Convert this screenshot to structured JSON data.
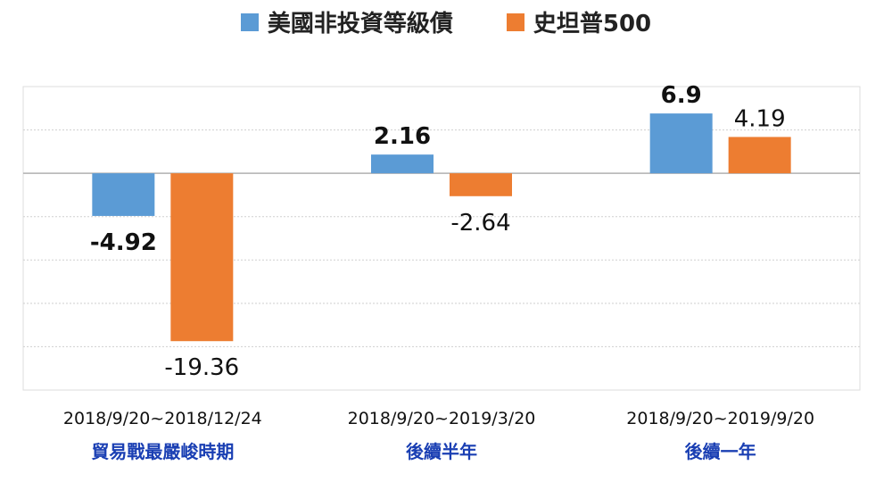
{
  "colors": {
    "series1": "#5b9bd5",
    "series2": "#ed7d31",
    "category_title": "#1a3fb3",
    "grid": "#cfcfcf"
  },
  "legend": [
    {
      "label": "美國非投資等級債"
    },
    {
      "label": "史坦普500"
    }
  ],
  "chart_data": {
    "type": "bar",
    "categories": [
      "2018/9/20~2018/12/24",
      "2018/9/20~2019/3/20",
      "2018/9/20~2019/9/20"
    ],
    "category_titles": [
      "貿易戰最嚴峻時期",
      "後續半年",
      "後續一年"
    ],
    "series": [
      {
        "name": "美國非投資等級債",
        "values": [
          -4.92,
          2.16,
          6.9
        ],
        "labels": [
          "-4.92",
          "2.16",
          "6.9"
        ]
      },
      {
        "name": "史坦普500",
        "values": [
          -19.36,
          -2.64,
          4.19
        ],
        "labels": [
          "-19.36",
          "-2.64",
          "4.19"
        ]
      }
    ],
    "ylim": [
      -25,
      10
    ],
    "grid": true,
    "legend_position": "top"
  }
}
